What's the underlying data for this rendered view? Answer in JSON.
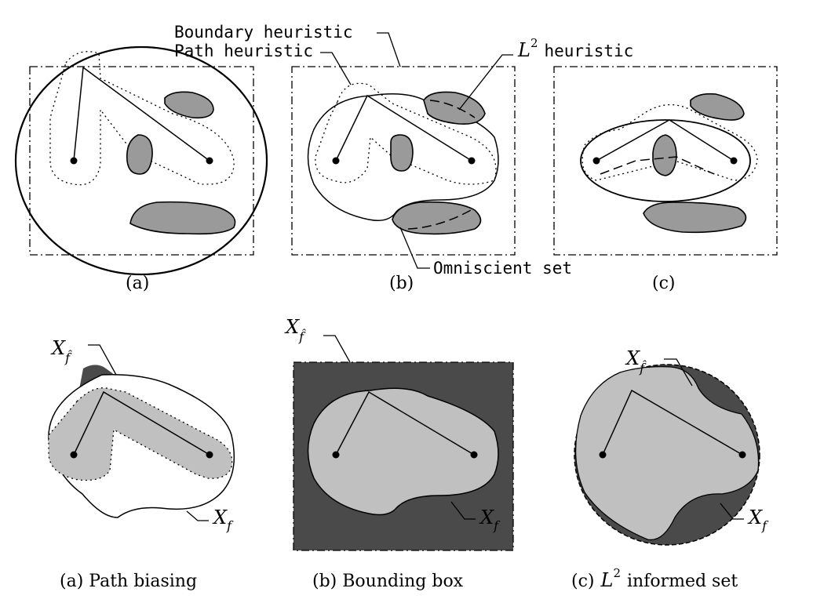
{
  "labels": {
    "boundary_heuristic": "Boundary heuristic",
    "path_heuristic": "Path heuristic",
    "l2_heuristic_base": "L",
    "l2_heuristic_exp": "2",
    "l2_heuristic_rest": "heuristic",
    "omniscient_set": "Omniscient set"
  },
  "top_captions": {
    "a": "(a)",
    "b": "(b)",
    "c": "(c)"
  },
  "set_labels": {
    "x_base": "X",
    "f_hat_sub": "f̂",
    "f_sub": "f"
  },
  "bottom_captions": {
    "a": "(a) Path biasing",
    "b": "(b) Bounding box",
    "c_prefix": "(c)",
    "c_base": "L",
    "c_exp": "2",
    "c_rest": "informed set"
  },
  "colors": {
    "obstacle_gray": "#9a9a9a",
    "light_gray": "#c0c0c0",
    "dark_gray": "#4a4a4a"
  }
}
